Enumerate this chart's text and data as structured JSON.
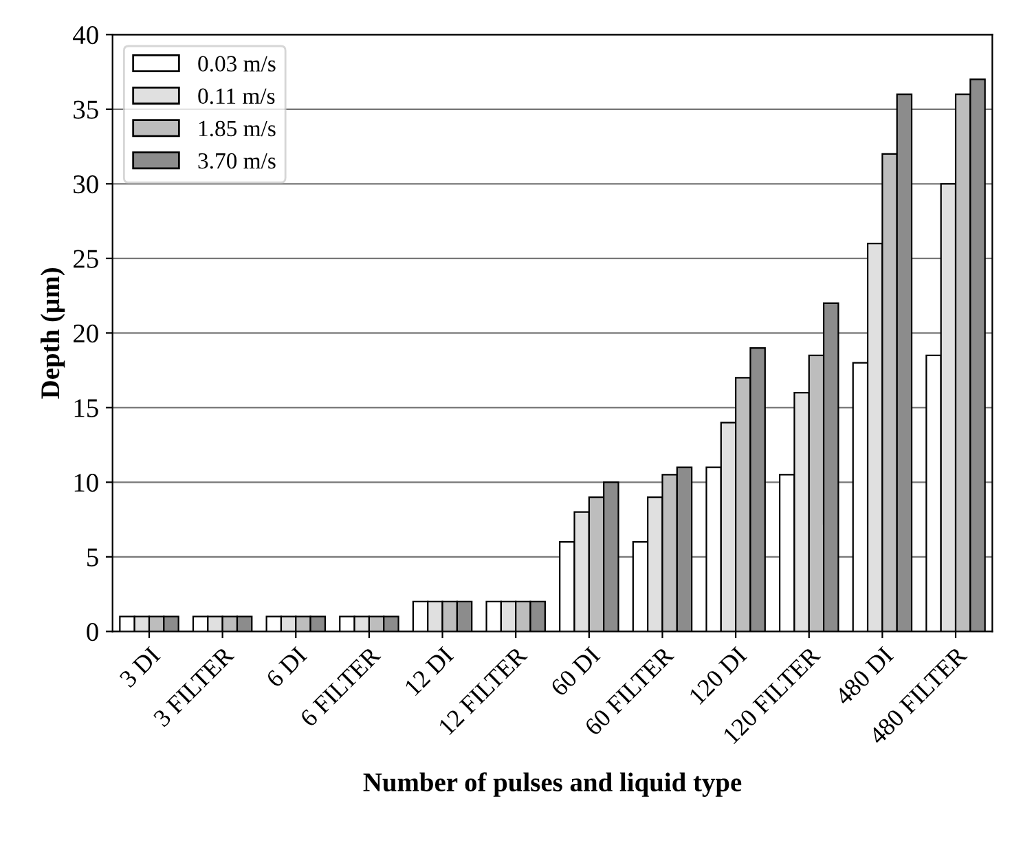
{
  "chart_data": {
    "type": "bar",
    "xlabel": "Number of pulses and liquid type",
    "ylabel": "Depth (µm)",
    "categories": [
      "3 DI",
      "3 FILTER",
      "6 DI",
      "6 FILTER",
      "12 DI",
      "12 FILTER",
      "60 DI",
      "60 FILTER",
      "120 DI",
      "120 FILTER",
      "480 DI",
      "480 FILTER"
    ],
    "series": [
      {
        "name": "0.03 m/s",
        "color": "#ffffff",
        "values": [
          1,
          1,
          1,
          1,
          2,
          2,
          6,
          6,
          11,
          10.5,
          18,
          18.5
        ]
      },
      {
        "name": "0.11 m/s",
        "color": "#e0e0e0",
        "values": [
          1,
          1,
          1,
          1,
          2,
          2,
          8,
          9,
          14,
          16,
          26,
          30
        ]
      },
      {
        "name": "1.85 m/s",
        "color": "#bdbdbd",
        "values": [
          1,
          1,
          1,
          1,
          2,
          2,
          9,
          10.5,
          17,
          18.5,
          32,
          36
        ]
      },
      {
        "name": "3.70 m/s",
        "color": "#8c8c8c",
        "values": [
          1,
          1,
          1,
          1,
          2,
          2,
          10,
          11,
          19,
          22,
          36,
          37
        ]
      }
    ],
    "ylim": [
      0,
      40
    ],
    "yticks": [
      0,
      5,
      10,
      15,
      20,
      25,
      30,
      35,
      40
    ],
    "grid": "y",
    "legend": "top left"
  }
}
